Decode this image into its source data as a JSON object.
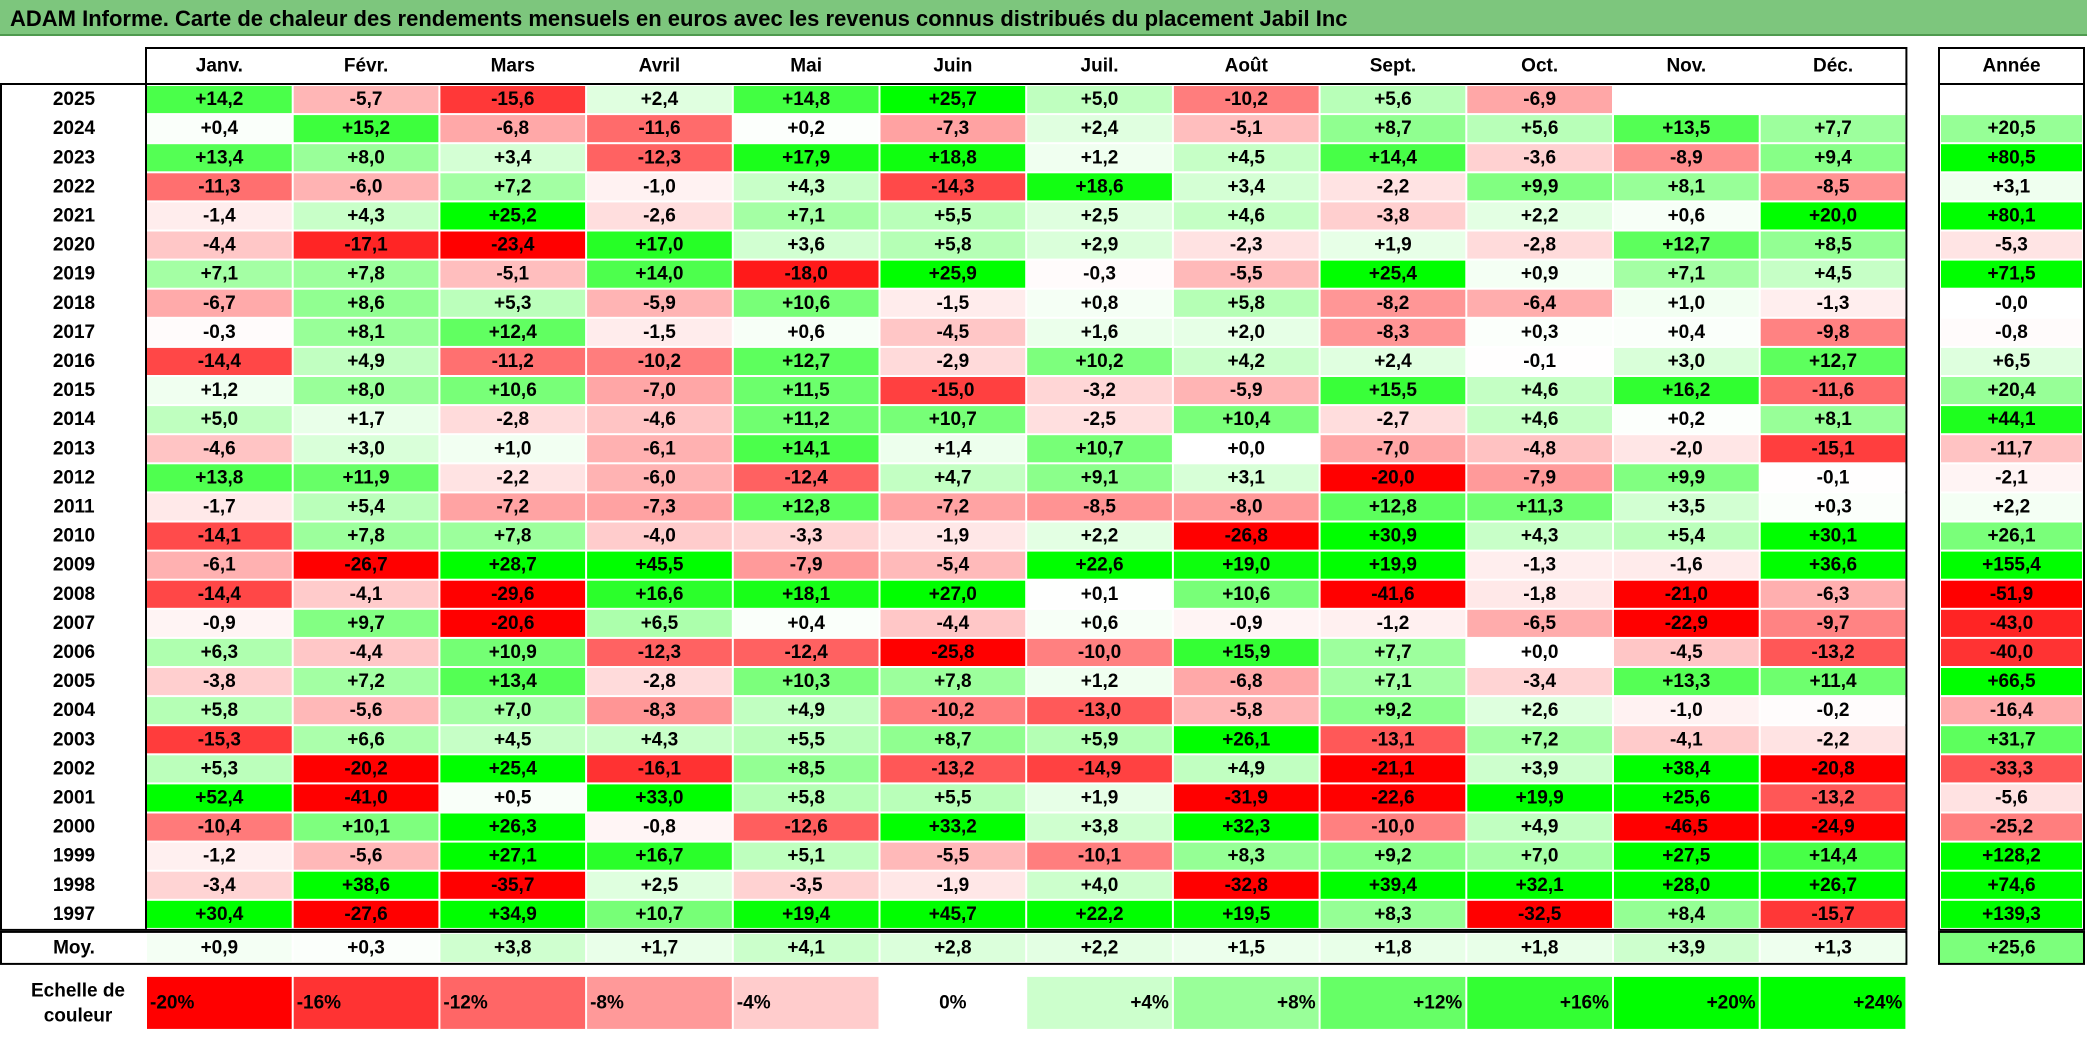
{
  "title": "ADAM Informe. Carte de chaleur des rendements mensuels en euros avec les revenus connus distribués du placement Jabil Inc",
  "chart_data": {
    "type": "heatmap",
    "months": [
      "Janv.",
      "Févr.",
      "Mars",
      "Avril",
      "Mai",
      "Juin",
      "Juil.",
      "Août",
      "Sept.",
      "Oct.",
      "Nov.",
      "Déc."
    ],
    "year_header": "Année",
    "rows": [
      {
        "year": "2025",
        "values": [
          14.2,
          -5.7,
          -15.6,
          2.4,
          14.8,
          25.7,
          5.0,
          -10.2,
          5.6,
          -6.9,
          null,
          null
        ],
        "annual": null
      },
      {
        "year": "2024",
        "values": [
          0.4,
          15.2,
          -6.8,
          -11.6,
          0.2,
          -7.3,
          2.4,
          -5.1,
          8.7,
          5.6,
          13.5,
          7.7
        ],
        "annual": 20.5
      },
      {
        "year": "2023",
        "values": [
          13.4,
          8.0,
          3.4,
          -12.3,
          17.9,
          18.8,
          1.2,
          4.5,
          14.4,
          -3.6,
          -8.9,
          9.4
        ],
        "annual": 80.5
      },
      {
        "year": "2022",
        "values": [
          -11.3,
          -6.0,
          7.2,
          -1.0,
          4.3,
          -14.3,
          18.6,
          3.4,
          -2.2,
          9.9,
          8.1,
          -8.5
        ],
        "annual": 3.1
      },
      {
        "year": "2021",
        "values": [
          -1.4,
          4.3,
          25.2,
          -2.6,
          7.1,
          5.5,
          2.5,
          4.6,
          -3.8,
          2.2,
          0.6,
          20.0
        ],
        "annual": 80.1
      },
      {
        "year": "2020",
        "values": [
          -4.4,
          -17.1,
          -23.4,
          17.0,
          3.6,
          5.8,
          2.9,
          -2.3,
          1.9,
          -2.8,
          12.7,
          8.5
        ],
        "annual": -5.3
      },
      {
        "year": "2019",
        "values": [
          7.1,
          7.8,
          -5.1,
          14.0,
          -18.0,
          25.9,
          -0.3,
          -5.5,
          25.4,
          0.9,
          7.1,
          4.5
        ],
        "annual": 71.5
      },
      {
        "year": "2018",
        "values": [
          -6.7,
          8.6,
          5.3,
          -5.9,
          10.6,
          -1.5,
          0.8,
          5.8,
          -8.2,
          -6.4,
          1.0,
          -1.3
        ],
        "annual": -0.0
      },
      {
        "year": "2017",
        "values": [
          -0.3,
          8.1,
          12.4,
          -1.5,
          0.6,
          -4.5,
          1.6,
          2.0,
          -8.3,
          0.3,
          0.4,
          -9.8
        ],
        "annual": -0.8
      },
      {
        "year": "2016",
        "values": [
          -14.4,
          4.9,
          -11.2,
          -10.2,
          12.7,
          -2.9,
          10.2,
          4.2,
          2.4,
          -0.1,
          3.0,
          12.7
        ],
        "annual": 6.5
      },
      {
        "year": "2015",
        "values": [
          1.2,
          8.0,
          10.6,
          -7.0,
          11.5,
          -15.0,
          -3.2,
          -5.9,
          15.5,
          4.6,
          16.2,
          -11.6
        ],
        "annual": 20.4
      },
      {
        "year": "2014",
        "values": [
          5.0,
          1.7,
          -2.8,
          -4.6,
          11.2,
          10.7,
          -2.5,
          10.4,
          -2.7,
          4.6,
          0.2,
          8.1
        ],
        "annual": 44.1
      },
      {
        "year": "2013",
        "values": [
          -4.6,
          3.0,
          1.0,
          -6.1,
          14.1,
          1.4,
          10.7,
          0.0,
          -7.0,
          -4.8,
          -2.0,
          -15.1
        ],
        "annual": -11.7
      },
      {
        "year": "2012",
        "values": [
          13.8,
          11.9,
          -2.2,
          -6.0,
          -12.4,
          4.7,
          9.1,
          3.1,
          -20.0,
          -7.9,
          9.9,
          -0.1
        ],
        "annual": -2.1
      },
      {
        "year": "2011",
        "values": [
          -1.7,
          5.4,
          -7.2,
          -7.3,
          12.8,
          -7.2,
          -8.5,
          -8.0,
          12.8,
          11.3,
          3.5,
          0.3
        ],
        "annual": 2.2
      },
      {
        "year": "2010",
        "values": [
          -14.1,
          7.8,
          7.8,
          -4.0,
          -3.3,
          -1.9,
          2.2,
          -26.8,
          30.9,
          4.3,
          5.4,
          30.1
        ],
        "annual": 26.1
      },
      {
        "year": "2009",
        "values": [
          -6.1,
          -26.7,
          28.7,
          45.5,
          -7.9,
          -5.4,
          22.6,
          19.0,
          19.9,
          -1.3,
          -1.6,
          36.6
        ],
        "annual": 155.4
      },
      {
        "year": "2008",
        "values": [
          -14.4,
          -4.1,
          -29.6,
          16.6,
          18.1,
          27.0,
          0.1,
          10.6,
          -41.6,
          -1.8,
          -21.0,
          -6.3
        ],
        "annual": -51.9
      },
      {
        "year": "2007",
        "values": [
          -0.9,
          9.7,
          -20.6,
          6.5,
          0.4,
          -4.4,
          0.6,
          -0.9,
          -1.2,
          -6.5,
          -22.9,
          -9.7
        ],
        "annual": -43.0
      },
      {
        "year": "2006",
        "values": [
          6.3,
          -4.4,
          10.9,
          -12.3,
          -12.4,
          -25.8,
          -10.0,
          15.9,
          7.7,
          0.0,
          -4.5,
          -13.2
        ],
        "annual": -40.0
      },
      {
        "year": "2005",
        "values": [
          -3.8,
          7.2,
          13.4,
          -2.8,
          10.3,
          7.8,
          1.2,
          -6.8,
          7.1,
          -3.4,
          13.3,
          11.4
        ],
        "annual": 66.5
      },
      {
        "year": "2004",
        "values": [
          5.8,
          -5.6,
          7.0,
          -8.3,
          4.9,
          -10.2,
          -13.0,
          -5.8,
          9.2,
          2.6,
          -1.0,
          -0.2
        ],
        "annual": -16.4
      },
      {
        "year": "2003",
        "values": [
          -15.3,
          6.6,
          4.5,
          4.3,
          5.5,
          8.7,
          5.9,
          26.1,
          -13.1,
          7.2,
          -4.1,
          -2.2
        ],
        "annual": 31.7
      },
      {
        "year": "2002",
        "values": [
          5.3,
          -20.2,
          25.4,
          -16.1,
          8.5,
          -13.2,
          -14.9,
          4.9,
          -21.1,
          3.9,
          38.4,
          -20.8
        ],
        "annual": -33.3
      },
      {
        "year": "2001",
        "values": [
          52.4,
          -41.0,
          0.5,
          33.0,
          5.8,
          5.5,
          1.9,
          -31.9,
          -22.6,
          19.9,
          25.6,
          -13.2
        ],
        "annual": -5.6
      },
      {
        "year": "2000",
        "values": [
          -10.4,
          10.1,
          26.3,
          -0.8,
          -12.6,
          33.2,
          3.8,
          32.3,
          -10.0,
          4.9,
          -46.5,
          -24.9
        ],
        "annual": -25.2
      },
      {
        "year": "1999",
        "values": [
          -1.2,
          -5.6,
          27.1,
          16.7,
          5.1,
          -5.5,
          -10.1,
          8.3,
          9.2,
          7.0,
          27.5,
          14.4
        ],
        "annual": 128.2
      },
      {
        "year": "1998",
        "values": [
          -3.4,
          38.6,
          -35.7,
          2.5,
          -3.5,
          -1.9,
          4.0,
          -32.8,
          39.4,
          32.1,
          28.0,
          26.7
        ],
        "annual": 74.6
      },
      {
        "year": "1997",
        "values": [
          30.4,
          -27.6,
          34.9,
          10.7,
          19.4,
          45.7,
          22.2,
          19.5,
          8.3,
          -32.5,
          8.4,
          -15.7
        ],
        "annual": 139.3
      }
    ],
    "average": {
      "label": "Moy.",
      "values": [
        0.9,
        0.3,
        3.8,
        1.7,
        4.1,
        2.8,
        2.2,
        1.5,
        1.8,
        1.8,
        3.9,
        1.3
      ],
      "annual": 25.6
    },
    "scale": {
      "label_line1": "Echelle de",
      "label_line2": "couleur",
      "steps": [
        {
          "label": "-20%",
          "value": -20
        },
        {
          "label": "-16%",
          "value": -16
        },
        {
          "label": "-12%",
          "value": -12
        },
        {
          "label": "-8%",
          "value": -8
        },
        {
          "label": "-4%",
          "value": -4
        },
        {
          "label": "0%",
          "value": 0
        },
        {
          "label": "+4%",
          "value": 4
        },
        {
          "label": "+8%",
          "value": 8
        },
        {
          "label": "+12%",
          "value": 12
        },
        {
          "label": "+16%",
          "value": 16
        },
        {
          "label": "+20%",
          "value": 20
        },
        {
          "label": "+24%",
          "value": 24
        }
      ]
    },
    "colors": {
      "negative_max": "#ff0000",
      "neutral": "#ffffff",
      "positive_max": "#00ff00",
      "title_bg": "#7dc67d"
    }
  }
}
